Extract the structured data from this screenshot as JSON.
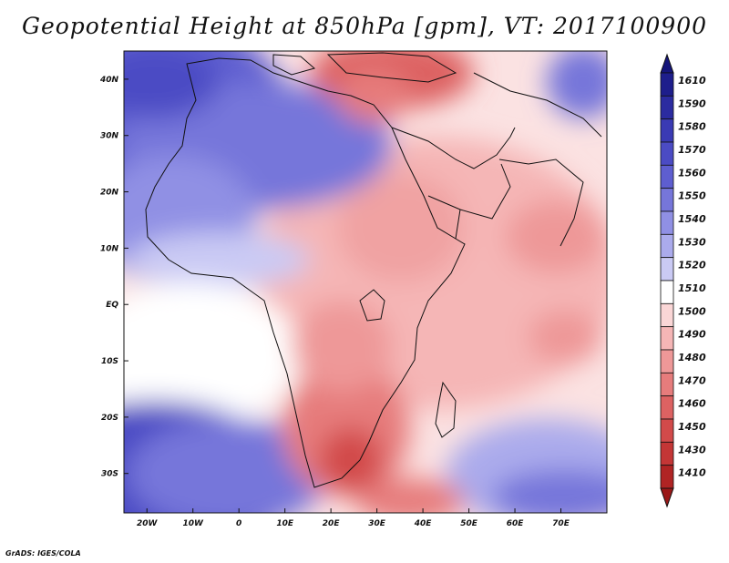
{
  "title": "Geopotential Height at 850hPa [gpm], VT: 2017100900",
  "credit": "GrADS: IGES/COLA",
  "map": {
    "variable": "Geopotential Height",
    "level": "850hPa",
    "units": "gpm",
    "valid_time": "2017100900",
    "lon_range": [
      -25,
      80
    ],
    "lat_range": [
      -37,
      45
    ],
    "lat_ticks": [
      {
        "value": 40,
        "label": "40N"
      },
      {
        "value": 30,
        "label": "30N"
      },
      {
        "value": 20,
        "label": "20N"
      },
      {
        "value": 10,
        "label": "10N"
      },
      {
        "value": 0,
        "label": "EQ"
      },
      {
        "value": -10,
        "label": "10S"
      },
      {
        "value": -20,
        "label": "20S"
      },
      {
        "value": -30,
        "label": "30S"
      }
    ],
    "lon_ticks": [
      {
        "value": -20,
        "label": "20W"
      },
      {
        "value": -10,
        "label": "10W"
      },
      {
        "value": 0,
        "label": "0"
      },
      {
        "value": 10,
        "label": "10E"
      },
      {
        "value": 20,
        "label": "20E"
      },
      {
        "value": 30,
        "label": "30E"
      },
      {
        "value": 40,
        "label": "40E"
      },
      {
        "value": 50,
        "label": "50E"
      },
      {
        "value": 60,
        "label": "60E"
      },
      {
        "value": 70,
        "label": "70E"
      }
    ]
  },
  "colorbar": {
    "levels": [
      {
        "label": "1610",
        "color": "#1e1e8c"
      },
      {
        "label": "1590",
        "color": "#2b2ba0"
      },
      {
        "label": "1580",
        "color": "#3a3ab4"
      },
      {
        "label": "1570",
        "color": "#4b4bc4"
      },
      {
        "label": "1560",
        "color": "#5e5ed0"
      },
      {
        "label": "1550",
        "color": "#7676da"
      },
      {
        "label": "1540",
        "color": "#9090e4"
      },
      {
        "label": "1530",
        "color": "#ababec"
      },
      {
        "label": "1520",
        "color": "#cacaf4"
      },
      {
        "label": "1510",
        "color": "#ffffff"
      },
      {
        "label": "1500",
        "color": "#fad6d6"
      },
      {
        "label": "1490",
        "color": "#f5b6b6"
      },
      {
        "label": "1480",
        "color": "#ee9898"
      },
      {
        "label": "1470",
        "color": "#e67c7c"
      },
      {
        "label": "1460",
        "color": "#dd6262"
      },
      {
        "label": "1450",
        "color": "#d24a4a"
      },
      {
        "label": "1430",
        "color": "#c43636"
      },
      {
        "label": "1410",
        "color": "#b02424"
      }
    ],
    "top_arrow_color": "#15157a",
    "bottom_arrow_color": "#9a1818"
  }
}
